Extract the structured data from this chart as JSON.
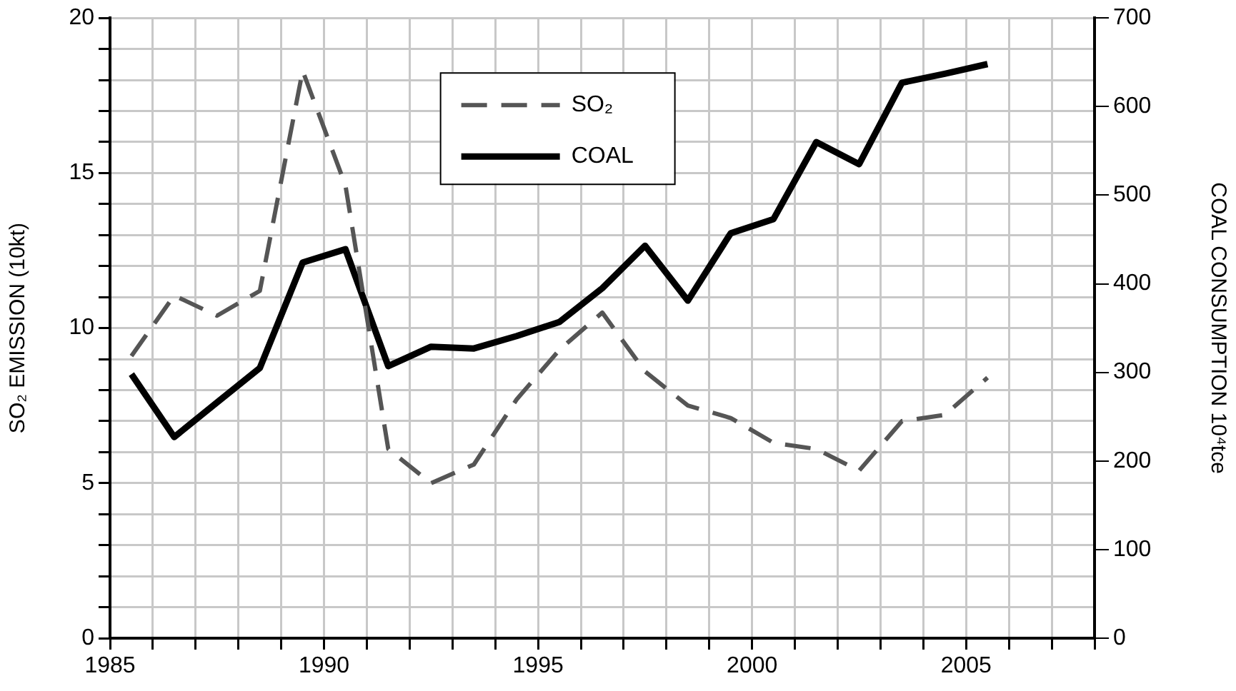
{
  "chart_data": {
    "type": "line",
    "ylabel": "SO₂ EMISSION (10kt)",
    "y2label": "COAL CONSUMPTION 10⁴tce",
    "x": [
      1985.5,
      1986.5,
      1987.5,
      1988.5,
      1989.5,
      1990.5,
      1991.5,
      1992.5,
      1993.5,
      1994.5,
      1995.5,
      1996.5,
      1997.5,
      1998.5,
      1999.5,
      2000.5,
      2001.5,
      2002.5,
      2003.5,
      2004.5,
      2005.5
    ],
    "series": [
      {
        "name": "SO₂",
        "color": "#555555",
        "line_style": "dashed",
        "values": [
          9.1,
          11.05,
          10.4,
          11.2,
          18.3,
          14.6,
          6.1,
          5.0,
          5.6,
          7.7,
          9.3,
          10.5,
          8.6,
          7.5,
          7.1,
          6.3,
          6.1,
          5.4,
          7.0,
          7.2,
          8.4
        ]
      },
      {
        "name": "COAL",
        "color": "#000000",
        "line_style": "solid",
        "axis": "y2",
        "values": [
          298,
          227,
          266,
          305,
          424,
          439,
          307,
          329,
          327,
          341,
          357,
          395,
          443,
          381,
          457,
          473,
          560,
          535,
          627,
          637,
          648
        ]
      }
    ],
    "xlim": [
      1985,
      2008
    ],
    "xticks": [
      1985,
      {
        "value": 1986,
        "label": null
      },
      {
        "value": 1987,
        "label": null
      },
      {
        "value": 1988,
        "label": null
      },
      {
        "value": 1989,
        "label": null
      },
      1990,
      {
        "value": 1991,
        "label": null
      },
      {
        "value": 1992,
        "label": null
      },
      {
        "value": 1993,
        "label": null
      },
      {
        "value": 1994,
        "label": null
      },
      1995,
      {
        "value": 1996,
        "label": null
      },
      {
        "value": 1997,
        "label": null
      },
      {
        "value": 1998,
        "label": null
      },
      {
        "value": 1999,
        "label": null
      },
      2000,
      {
        "value": 2001,
        "label": null
      },
      {
        "value": 2002,
        "label": null
      },
      {
        "value": 2003,
        "label": null
      },
      {
        "value": 2004,
        "label": null
      },
      2005,
      {
        "value": 2006,
        "label": null
      },
      {
        "value": 2007,
        "label": null
      },
      {
        "value": 2008,
        "label": null
      }
    ],
    "ylim": [
      0,
      20
    ],
    "yticks": [
      0,
      {
        "value": 1,
        "label": null
      },
      {
        "value": 2,
        "label": null
      },
      {
        "value": 3,
        "label": null
      },
      {
        "value": 4,
        "label": null
      },
      5,
      {
        "value": 6,
        "label": null
      },
      {
        "value": 7,
        "label": null
      },
      {
        "value": 8,
        "label": null
      },
      {
        "value": 9,
        "label": null
      },
      10,
      {
        "value": 11,
        "label": null
      },
      {
        "value": 12,
        "label": null
      },
      {
        "value": 13,
        "label": null
      },
      {
        "value": 14,
        "label": null
      },
      15,
      {
        "value": 16,
        "label": null
      },
      {
        "value": 17,
        "label": null
      },
      {
        "value": 18,
        "label": null
      },
      {
        "value": 19,
        "label": null
      },
      20
    ],
    "y2lim": [
      0,
      700
    ],
    "y2ticks": [
      0,
      100,
      200,
      300,
      400,
      500,
      600,
      700
    ],
    "grid": true,
    "legend": "top",
    "marker": "none"
  }
}
